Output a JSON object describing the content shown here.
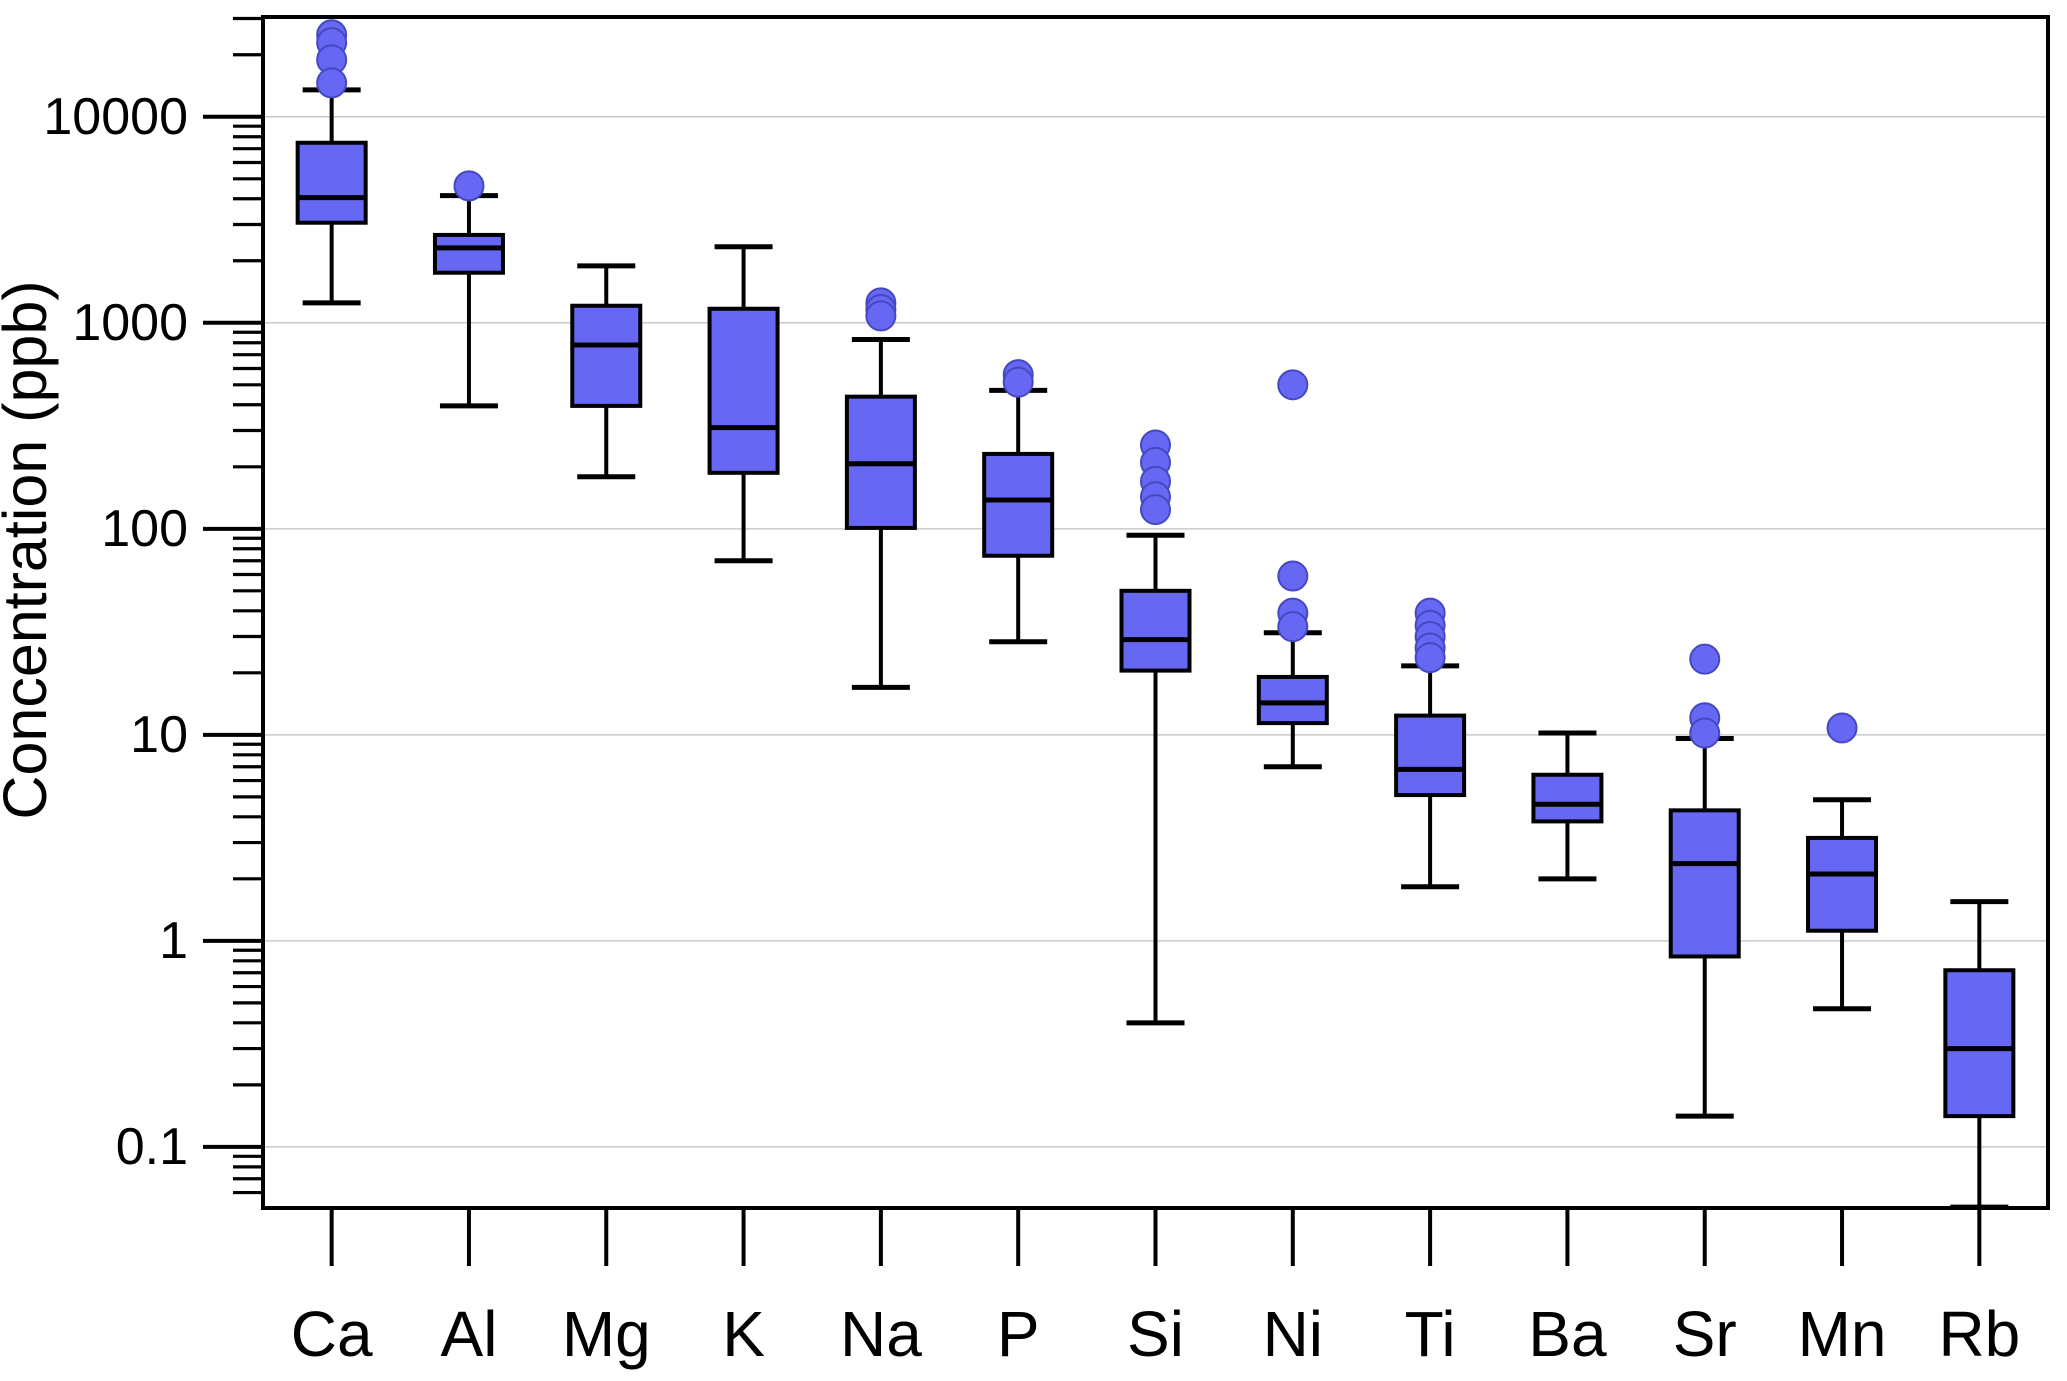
{
  "chart_data": {
    "type": "boxplot",
    "title": "",
    "xlabel": "",
    "ylabel": "Concentration (ppb)",
    "y_scale": "log",
    "ylim": [
      0.0505,
      30500
    ],
    "grid": "horizontal-major-decades",
    "y_ticks": [
      {
        "value": 10000,
        "label": "10000"
      },
      {
        "value": 1000,
        "label": "1000"
      },
      {
        "value": 100,
        "label": "100"
      },
      {
        "value": 10,
        "label": "10"
      },
      {
        "value": 1,
        "label": "1"
      },
      {
        "value": 0.1,
        "label": "0.1"
      }
    ],
    "categories": [
      "Ca",
      "Al",
      "Mg",
      "K",
      "Na",
      "P",
      "Si",
      "Ni",
      "Ti",
      "Ba",
      "Sr",
      "Mn",
      "Rb"
    ],
    "boxes": [
      {
        "label": "Ca",
        "whisker_low": 1250,
        "q1": 3060,
        "median": 4050,
        "q3": 7480,
        "whisker_high": 13500,
        "outliers": [
          14600,
          18900,
          22900,
          25000
        ]
      },
      {
        "label": "Al",
        "whisker_low": 395,
        "q1": 1750,
        "median": 2310,
        "q3": 2670,
        "whisker_high": 4140,
        "outliers": [
          4620
        ]
      },
      {
        "label": "Mg",
        "whisker_low": 179,
        "q1": 395,
        "median": 780,
        "q3": 1210,
        "whisker_high": 1890,
        "outliers": []
      },
      {
        "label": "K",
        "whisker_low": 70,
        "q1": 187,
        "median": 310,
        "q3": 1170,
        "whisker_high": 2340,
        "outliers": []
      },
      {
        "label": "Na",
        "whisker_low": 17,
        "q1": 101,
        "median": 207,
        "q3": 438,
        "whisker_high": 830,
        "outliers": [
          1080,
          1160,
          1250
        ]
      },
      {
        "label": "P",
        "whisker_low": 28.3,
        "q1": 74,
        "median": 138,
        "q3": 231,
        "whisker_high": 470,
        "outliers": [
          515,
          560
        ]
      },
      {
        "label": "Si",
        "whisker_low": 0.4,
        "q1": 20.5,
        "median": 29,
        "q3": 50,
        "whisker_high": 93,
        "outliers": [
          124,
          143,
          170,
          210,
          255
        ]
      },
      {
        "label": "Ni",
        "whisker_low": 7,
        "q1": 11.4,
        "median": 14.3,
        "q3": 19.1,
        "whisker_high": 31.3,
        "outliers": [
          33.5,
          39,
          59,
          500
        ]
      },
      {
        "label": "Ti",
        "whisker_low": 1.83,
        "q1": 5.1,
        "median": 6.8,
        "q3": 12.4,
        "whisker_high": 21.6,
        "outliers": [
          23.7,
          26.4,
          30,
          34,
          39
        ]
      },
      {
        "label": "Ba",
        "whisker_low": 2.0,
        "q1": 3.8,
        "median": 4.6,
        "q3": 6.4,
        "whisker_high": 10.2,
        "outliers": []
      },
      {
        "label": "Sr",
        "whisker_low": 0.141,
        "q1": 0.84,
        "median": 2.37,
        "q3": 4.3,
        "whisker_high": 9.6,
        "outliers": [
          10.2,
          12.1,
          23.3
        ]
      },
      {
        "label": "Mn",
        "whisker_low": 0.468,
        "q1": 1.12,
        "median": 2.11,
        "q3": 3.16,
        "whisker_high": 4.84,
        "outliers": [
          10.8
        ]
      },
      {
        "label": "Rb",
        "whisker_low": 0.051,
        "q1": 0.141,
        "median": 0.3,
        "q3": 0.72,
        "whisker_high": 1.55,
        "outliers": []
      }
    ],
    "style": {
      "box_fill": "#6667f2",
      "box_stroke": "#000000",
      "median_color": "#000000",
      "whisker_color": "#000000",
      "outlier_fill": "#6667f2",
      "outlier_stroke": "#4549c0",
      "grid_color": "#c9c9c9",
      "axis_color": "#000000",
      "background": "#ffffff"
    }
  }
}
